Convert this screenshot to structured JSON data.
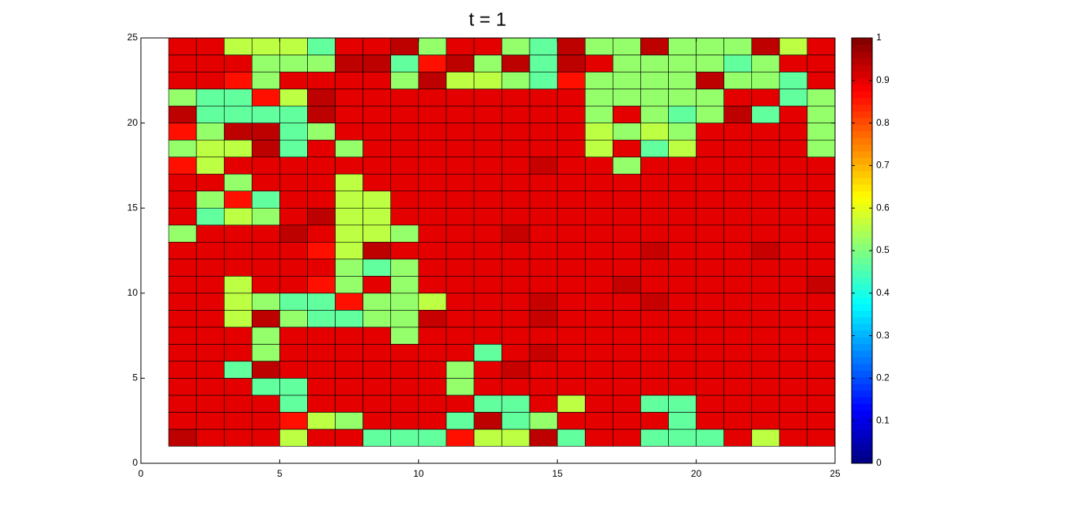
{
  "chart_data": {
    "type": "pcolor",
    "title": "t = 1",
    "colormap": "jet",
    "xlim": [
      0,
      25
    ],
    "ylim": [
      0,
      25
    ],
    "xticks": [
      0,
      5,
      10,
      15,
      20,
      25
    ],
    "yticks": [
      0,
      5,
      10,
      15,
      20,
      25
    ],
    "x_edges": [
      1,
      2,
      3,
      4,
      5,
      6,
      7,
      8,
      9,
      10,
      11,
      12,
      13,
      14,
      15,
      16,
      17,
      18,
      19,
      20,
      21,
      22,
      23,
      24,
      25
    ],
    "y_edges": [
      1,
      2,
      3,
      4,
      5,
      6,
      7,
      8,
      9,
      10,
      11,
      12,
      13,
      14,
      15,
      16,
      17,
      18,
      19,
      20,
      21,
      22,
      23,
      24,
      25
    ],
    "clim": [
      0,
      1
    ],
    "cticks": [
      0,
      0.1,
      0.2,
      0.3,
      0.4,
      0.5,
      0.6,
      0.7,
      0.8,
      0.9,
      1
    ],
    "z": [
      [
        0.94,
        0.9,
        0.9,
        0.9,
        0.56,
        0.9,
        0.9,
        0.47,
        0.47,
        0.47,
        0.86,
        0.56,
        0.56,
        0.94,
        0.47,
        0.9,
        0.9,
        0.47,
        0.47,
        0.47,
        0.9,
        0.56,
        0.9,
        0.9
      ],
      [
        0.9,
        0.9,
        0.9,
        0.9,
        0.86,
        0.56,
        0.52,
        0.9,
        0.9,
        0.9,
        0.47,
        0.94,
        0.47,
        0.52,
        0.9,
        0.9,
        0.9,
        0.9,
        0.47,
        0.9,
        0.9,
        0.9,
        0.9,
        0.9
      ],
      [
        0.9,
        0.9,
        0.9,
        0.9,
        0.47,
        0.9,
        0.9,
        0.9,
        0.9,
        0.9,
        0.9,
        0.47,
        0.47,
        0.9,
        0.56,
        0.9,
        0.9,
        0.47,
        0.47,
        0.9,
        0.9,
        0.9,
        0.9,
        0.9
      ],
      [
        0.9,
        0.9,
        0.9,
        0.47,
        0.47,
        0.9,
        0.9,
        0.9,
        0.9,
        0.9,
        0.52,
        0.9,
        0.9,
        0.9,
        0.9,
        0.9,
        0.9,
        0.9,
        0.9,
        0.9,
        0.9,
        0.9,
        0.9,
        0.9
      ],
      [
        0.9,
        0.9,
        0.47,
        0.94,
        0.9,
        0.9,
        0.9,
        0.9,
        0.9,
        0.9,
        0.52,
        0.9,
        0.93,
        0.9,
        0.9,
        0.9,
        0.9,
        0.9,
        0.9,
        0.9,
        0.9,
        0.9,
        0.9,
        0.9
      ],
      [
        0.9,
        0.9,
        0.9,
        0.52,
        0.9,
        0.9,
        0.9,
        0.9,
        0.9,
        0.9,
        0.9,
        0.47,
        0.9,
        0.93,
        0.9,
        0.9,
        0.9,
        0.9,
        0.9,
        0.9,
        0.9,
        0.9,
        0.9,
        0.9
      ],
      [
        0.9,
        0.9,
        0.9,
        0.52,
        0.9,
        0.9,
        0.9,
        0.9,
        0.52,
        0.9,
        0.9,
        0.9,
        0.9,
        0.9,
        0.9,
        0.9,
        0.9,
        0.9,
        0.9,
        0.9,
        0.9,
        0.9,
        0.9,
        0.9
      ],
      [
        0.9,
        0.9,
        0.56,
        0.94,
        0.52,
        0.47,
        0.47,
        0.52,
        0.52,
        0.93,
        0.9,
        0.9,
        0.9,
        0.93,
        0.9,
        0.9,
        0.9,
        0.9,
        0.9,
        0.9,
        0.9,
        0.9,
        0.9,
        0.9
      ],
      [
        0.9,
        0.9,
        0.56,
        0.52,
        0.47,
        0.47,
        0.86,
        0.52,
        0.52,
        0.56,
        0.9,
        0.9,
        0.9,
        0.93,
        0.9,
        0.9,
        0.9,
        0.93,
        0.9,
        0.9,
        0.9,
        0.9,
        0.9,
        0.9
      ],
      [
        0.9,
        0.9,
        0.56,
        0.9,
        0.9,
        0.86,
        0.52,
        0.9,
        0.52,
        0.9,
        0.9,
        0.9,
        0.9,
        0.9,
        0.9,
        0.9,
        0.93,
        0.9,
        0.9,
        0.9,
        0.9,
        0.9,
        0.9,
        0.93
      ],
      [
        0.9,
        0.9,
        0.9,
        0.9,
        0.9,
        0.9,
        0.52,
        0.47,
        0.52,
        0.9,
        0.9,
        0.9,
        0.9,
        0.9,
        0.9,
        0.9,
        0.9,
        0.9,
        0.9,
        0.9,
        0.9,
        0.9,
        0.9,
        0.9
      ],
      [
        0.9,
        0.9,
        0.9,
        0.9,
        0.9,
        0.86,
        0.56,
        0.94,
        0.9,
        0.9,
        0.9,
        0.9,
        0.9,
        0.9,
        0.9,
        0.9,
        0.9,
        0.93,
        0.9,
        0.9,
        0.9,
        0.93,
        0.9,
        0.9
      ],
      [
        0.52,
        0.9,
        0.9,
        0.9,
        0.94,
        0.9,
        0.56,
        0.56,
        0.52,
        0.9,
        0.9,
        0.9,
        0.93,
        0.9,
        0.9,
        0.9,
        0.9,
        0.9,
        0.9,
        0.9,
        0.9,
        0.9,
        0.9,
        0.9
      ],
      [
        0.9,
        0.47,
        0.56,
        0.52,
        0.9,
        0.94,
        0.56,
        0.56,
        0.9,
        0.9,
        0.9,
        0.9,
        0.9,
        0.9,
        0.9,
        0.9,
        0.9,
        0.9,
        0.9,
        0.9,
        0.9,
        0.9,
        0.9,
        0.9
      ],
      [
        0.9,
        0.52,
        0.86,
        0.47,
        0.9,
        0.9,
        0.56,
        0.56,
        0.9,
        0.9,
        0.9,
        0.9,
        0.9,
        0.9,
        0.9,
        0.9,
        0.9,
        0.9,
        0.9,
        0.9,
        0.9,
        0.9,
        0.9,
        0.9
      ],
      [
        0.9,
        0.9,
        0.52,
        0.9,
        0.9,
        0.9,
        0.56,
        0.9,
        0.9,
        0.9,
        0.9,
        0.9,
        0.9,
        0.9,
        0.9,
        0.9,
        0.9,
        0.9,
        0.9,
        0.9,
        0.9,
        0.9,
        0.9,
        0.9
      ],
      [
        0.86,
        0.56,
        0.9,
        0.9,
        0.9,
        0.9,
        0.9,
        0.9,
        0.9,
        0.9,
        0.9,
        0.9,
        0.9,
        0.93,
        0.9,
        0.9,
        0.52,
        0.9,
        0.9,
        0.9,
        0.9,
        0.9,
        0.9,
        0.9
      ],
      [
        0.52,
        0.56,
        0.56,
        0.94,
        0.47,
        0.9,
        0.52,
        0.9,
        0.9,
        0.9,
        0.9,
        0.9,
        0.9,
        0.9,
        0.9,
        0.56,
        0.9,
        0.47,
        0.56,
        0.9,
        0.9,
        0.9,
        0.9,
        0.52
      ],
      [
        0.86,
        0.52,
        0.94,
        0.94,
        0.47,
        0.52,
        0.9,
        0.9,
        0.9,
        0.9,
        0.9,
        0.9,
        0.9,
        0.9,
        0.9,
        0.56,
        0.52,
        0.56,
        0.52,
        0.9,
        0.9,
        0.9,
        0.9,
        0.52
      ],
      [
        0.94,
        0.47,
        0.47,
        0.47,
        0.47,
        0.94,
        0.9,
        0.9,
        0.9,
        0.9,
        0.9,
        0.9,
        0.9,
        0.9,
        0.9,
        0.52,
        0.9,
        0.52,
        0.47,
        0.52,
        0.94,
        0.47,
        0.9,
        0.52
      ],
      [
        0.52,
        0.47,
        0.47,
        0.86,
        0.56,
        0.94,
        0.9,
        0.9,
        0.9,
        0.9,
        0.9,
        0.9,
        0.9,
        0.9,
        0.9,
        0.52,
        0.52,
        0.52,
        0.52,
        0.52,
        0.9,
        0.9,
        0.47,
        0.52
      ],
      [
        0.9,
        0.9,
        0.86,
        0.52,
        0.9,
        0.9,
        0.9,
        0.9,
        0.52,
        0.94,
        0.56,
        0.56,
        0.52,
        0.47,
        0.86,
        0.52,
        0.52,
        0.52,
        0.52,
        0.94,
        0.52,
        0.52,
        0.47,
        0.9
      ],
      [
        0.9,
        0.9,
        0.9,
        0.52,
        0.52,
        0.52,
        0.94,
        0.94,
        0.47,
        0.86,
        0.94,
        0.52,
        0.94,
        0.47,
        0.94,
        0.9,
        0.52,
        0.52,
        0.52,
        0.52,
        0.47,
        0.52,
        0.9,
        0.9
      ],
      [
        0.9,
        0.9,
        0.56,
        0.56,
        0.56,
        0.47,
        0.9,
        0.9,
        0.94,
        0.52,
        0.9,
        0.9,
        0.52,
        0.47,
        0.94,
        0.52,
        0.52,
        0.94,
        0.52,
        0.52,
        0.52,
        0.94,
        0.56,
        0.9
      ]
    ]
  }
}
